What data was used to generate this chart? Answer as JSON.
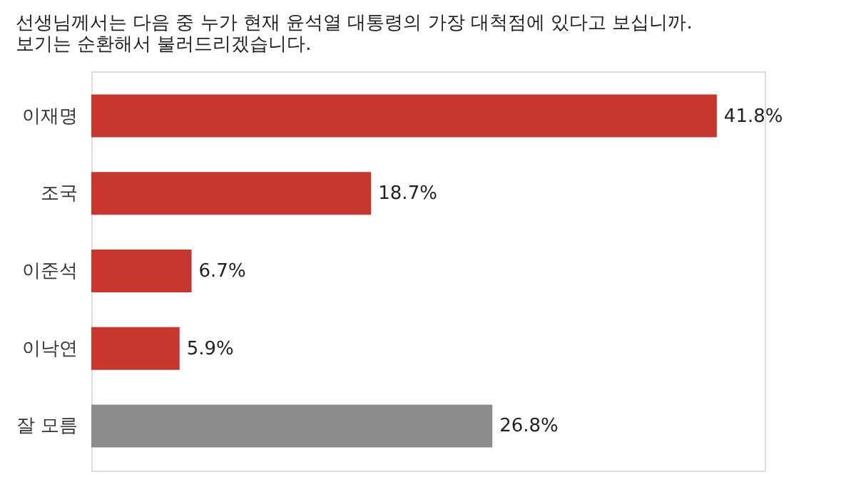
{
  "chart_data": {
    "type": "bar",
    "orientation": "horizontal",
    "title": "선생님께서는 다음 중 누가 현재 윤석열 대통령의 가장 대척점에 있다고 보십니까.\n보기는 순환해서 불러드리겠습니다.",
    "categories": [
      "이재명",
      "조국",
      "이준석",
      "이낙연",
      "잘 모름"
    ],
    "values": [
      41.8,
      18.7,
      6.7,
      5.9,
      26.8
    ],
    "colors": [
      "#c8372d",
      "#c8372d",
      "#c8372d",
      "#c8372d",
      "#8c8c8c"
    ],
    "value_labels": [
      "41.8%",
      "18.7%",
      "6.7%",
      "5.9%",
      "26.8%"
    ],
    "tick_labels": "y"
  }
}
